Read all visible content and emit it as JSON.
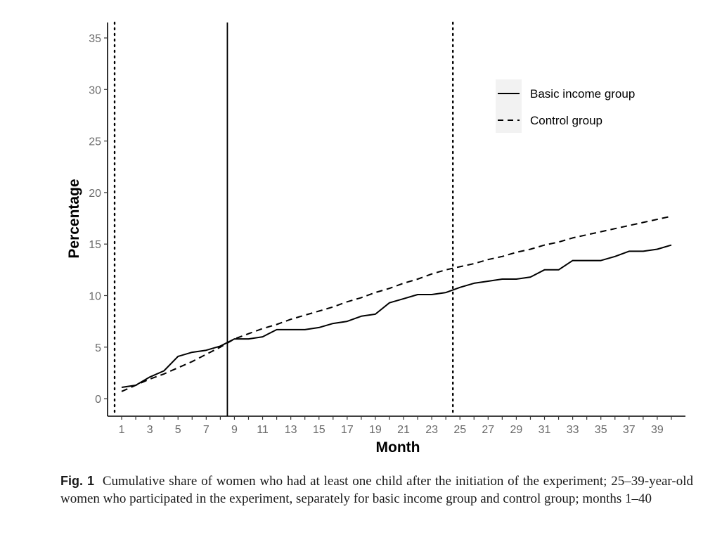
{
  "chart_data": {
    "type": "line",
    "xlabel": "Month",
    "ylabel": "Percentage",
    "xlim": [
      0,
      41
    ],
    "ylim": [
      -1.7,
      36.5
    ],
    "yticks": [
      0,
      5,
      10,
      15,
      20,
      25,
      30,
      35
    ],
    "xticks": [
      1,
      3,
      5,
      7,
      9,
      11,
      13,
      15,
      17,
      19,
      21,
      23,
      25,
      27,
      29,
      31,
      33,
      35,
      37,
      39
    ],
    "grid": false,
    "legend_position": "top-right",
    "reference_lines": [
      {
        "x": 0.5,
        "style": "dotted"
      },
      {
        "x": 8.5,
        "style": "solid"
      },
      {
        "x": 24.5,
        "style": "dotted"
      }
    ],
    "series": [
      {
        "name": "Basic income group",
        "style": "solid",
        "x": [
          1,
          2,
          3,
          4,
          5,
          6,
          7,
          8,
          9,
          10,
          11,
          12,
          13,
          14,
          15,
          16,
          17,
          18,
          19,
          20,
          21,
          22,
          23,
          24,
          25,
          26,
          27,
          28,
          29,
          30,
          31,
          32,
          33,
          34,
          35,
          36,
          37,
          38,
          39,
          40
        ],
        "values": [
          1.1,
          1.3,
          2.1,
          2.7,
          4.1,
          4.5,
          4.7,
          5.1,
          5.8,
          5.8,
          6.0,
          6.7,
          6.7,
          6.7,
          6.9,
          7.3,
          7.5,
          8.0,
          8.2,
          9.3,
          9.7,
          10.1,
          10.1,
          10.3,
          10.8,
          11.2,
          11.4,
          11.6,
          11.6,
          11.8,
          12.5,
          12.5,
          13.4,
          13.4,
          13.4,
          13.8,
          14.3,
          14.3,
          14.5,
          14.9
        ]
      },
      {
        "name": "Control group",
        "style": "dashed",
        "x": [
          1,
          2,
          3,
          4,
          5,
          6,
          7,
          8,
          9,
          10,
          11,
          12,
          13,
          14,
          15,
          16,
          17,
          18,
          19,
          20,
          21,
          22,
          23,
          24,
          25,
          26,
          27,
          28,
          29,
          30,
          31,
          32,
          33,
          34,
          35,
          36,
          37,
          38,
          39,
          40
        ],
        "values": [
          0.7,
          1.3,
          1.9,
          2.4,
          3.0,
          3.6,
          4.3,
          5.0,
          5.8,
          6.3,
          6.8,
          7.2,
          7.7,
          8.1,
          8.5,
          8.9,
          9.4,
          9.8,
          10.3,
          10.7,
          11.2,
          11.6,
          12.1,
          12.5,
          12.8,
          13.1,
          13.5,
          13.8,
          14.2,
          14.5,
          14.9,
          15.2,
          15.6,
          15.9,
          16.2,
          16.5,
          16.8,
          17.1,
          17.4,
          17.7
        ]
      }
    ]
  },
  "caption": {
    "label": "Fig. 1",
    "text": "Cumulative share of women who had at least one child after the initiation of the experiment; 25–39-year-old women who participated in the experiment, separately for basic income group and control group; months 1–40"
  }
}
